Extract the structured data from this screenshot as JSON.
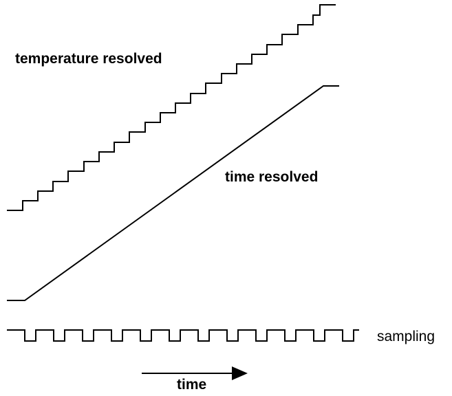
{
  "labels": {
    "temperature_resolved": "temperature resolved",
    "time_resolved": "time resolved",
    "sampling": "sampling",
    "time": "time"
  },
  "colors": {
    "stroke": "#000000",
    "background": "#ffffff"
  }
}
